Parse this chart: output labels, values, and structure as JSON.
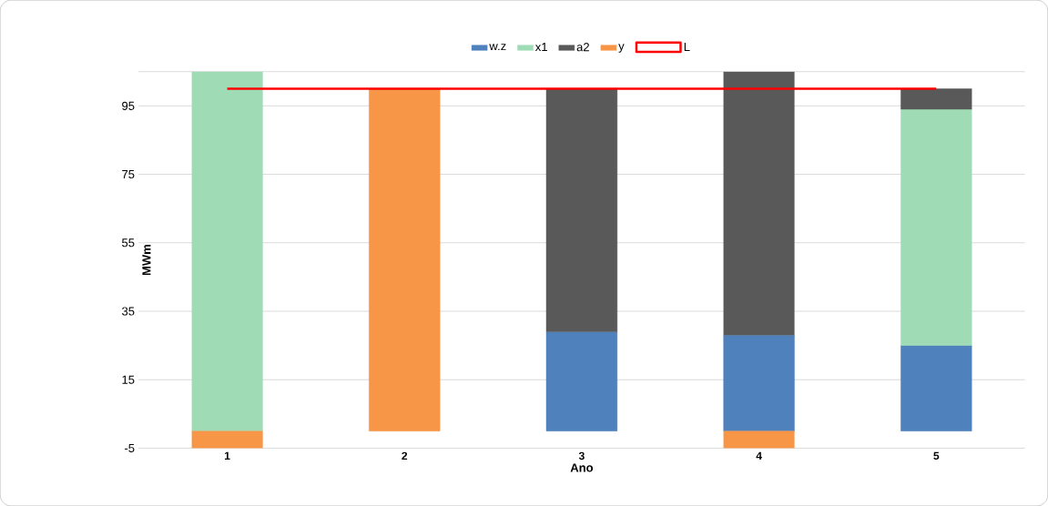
{
  "chart_data": {
    "type": "bar",
    "stacked": true,
    "xlabel": "Ano",
    "ylabel": "MWm",
    "categories": [
      "1",
      "2",
      "3",
      "4",
      "5"
    ],
    "series": [
      {
        "name": "w.z",
        "color": "#4f81bd",
        "values": [
          null,
          null,
          29,
          28,
          25
        ]
      },
      {
        "name": "x1",
        "color": "#9fdcb6",
        "values": [
          105,
          null,
          null,
          null,
          69
        ]
      },
      {
        "name": "a2",
        "color": "#595959",
        "values": [
          null,
          null,
          71,
          77,
          6
        ]
      },
      {
        "name": "y",
        "color": "#f79646",
        "values": [
          -5,
          100,
          null,
          -5,
          null
        ]
      },
      {
        "name": "L",
        "type": "line",
        "color": "#ff0000",
        "marker": "none",
        "values": [
          100,
          100,
          100,
          100,
          100
        ]
      }
    ],
    "ylim": [
      -5,
      105
    ],
    "yticks": [
      -5,
      15,
      35,
      55,
      75,
      95
    ],
    "grid": "y",
    "legend": "top"
  }
}
